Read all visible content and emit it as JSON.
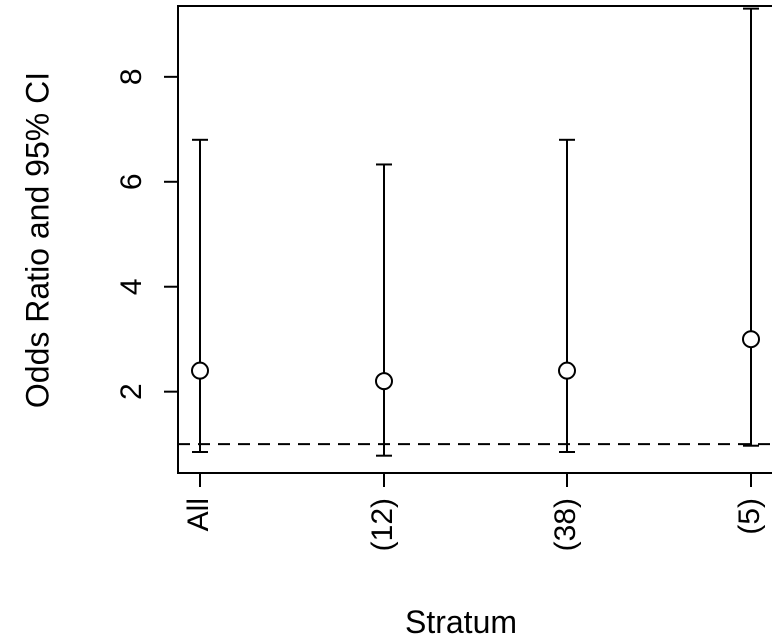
{
  "chart_data": {
    "type": "scatter",
    "title": "",
    "xlabel": "Stratum",
    "ylabel": "Odds Ratio and 95% CI",
    "categories": [
      "All",
      "(12)",
      "(38)",
      "(5)"
    ],
    "series": [
      {
        "points": [
          {
            "category": "All",
            "or": 2.4,
            "lower": 0.85,
            "upper": 6.8
          },
          {
            "category": "(12)",
            "or": 2.2,
            "lower": 0.78,
            "upper": 6.33
          },
          {
            "category": "(38)",
            "or": 2.4,
            "lower": 0.85,
            "upper": 6.8
          },
          {
            "category": "(5)",
            "or": 3.0,
            "lower": 0.97,
            "upper": 9.3
          }
        ]
      }
    ],
    "reference_line": {
      "y": 1,
      "style": "dashed"
    },
    "ylim": [
      0.45,
      9.35
    ],
    "yticks": [
      2,
      4,
      6,
      8
    ],
    "grid": false,
    "legend": "none"
  }
}
